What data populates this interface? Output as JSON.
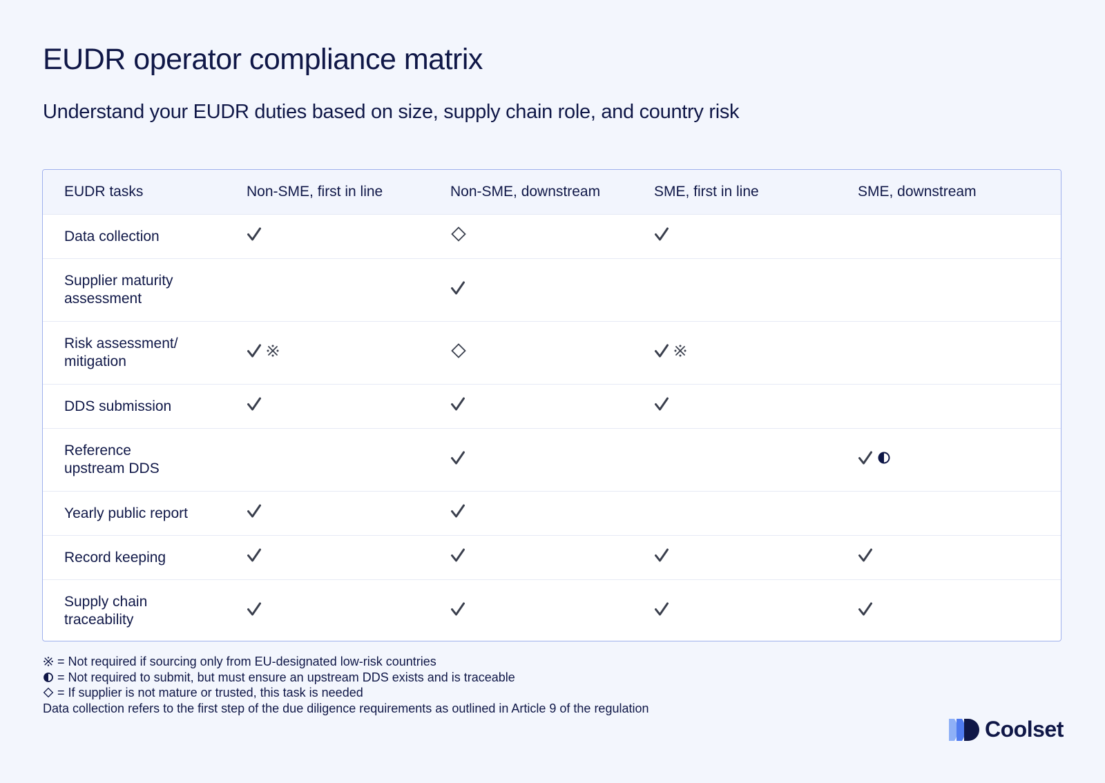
{
  "title": "EUDR operator compliance matrix",
  "subtitle": "Understand your EUDR duties based on size, supply chain role, and country risk",
  "table": {
    "headers": [
      "EUDR tasks",
      "Non-SME, first in line",
      "Non-SME, downstream",
      "SME, first in line",
      "SME, downstream"
    ],
    "rows": [
      {
        "task": "Data collection",
        "cells": [
          [
            "check"
          ],
          [
            "diamond"
          ],
          [
            "check"
          ],
          []
        ]
      },
      {
        "task": "Supplier maturity assessment",
        "cells": [
          [],
          [
            "check"
          ],
          [],
          []
        ]
      },
      {
        "task": "Risk assessment/ mitigation",
        "cells": [
          [
            "check",
            "reference-mark"
          ],
          [
            "diamond"
          ],
          [
            "check",
            "reference-mark"
          ],
          []
        ]
      },
      {
        "task": "DDS submission",
        "cells": [
          [
            "check"
          ],
          [
            "check"
          ],
          [
            "check"
          ],
          []
        ]
      },
      {
        "task": "Reference upstream DDS",
        "cells": [
          [],
          [
            "check"
          ],
          [],
          [
            "check",
            "half-circle"
          ]
        ]
      },
      {
        "task": "Yearly public report",
        "cells": [
          [
            "check"
          ],
          [
            "check"
          ],
          [],
          []
        ]
      },
      {
        "task": "Record keeping",
        "cells": [
          [
            "check"
          ],
          [
            "check"
          ],
          [
            "check"
          ],
          [
            "check"
          ]
        ]
      },
      {
        "task": "Supply chain traceability",
        "cells": [
          [
            "check"
          ],
          [
            "check"
          ],
          [
            "check"
          ],
          [
            "check"
          ]
        ]
      }
    ]
  },
  "footnotes": {
    "reference_mark": "= Not required if sourcing only from EU-designated low-risk countries",
    "half_circle": "= Not required to submit, but must ensure an upstream DDS exists and is traceable",
    "diamond": "= If supplier is not mature or trusted, this task is needed",
    "data_collection": "Data collection refers to the first step of the due diligence requirements as outlined in Article 9 of the regulation"
  },
  "brand": {
    "name": "Coolset",
    "logo_icon": "coolset-logo-icon"
  },
  "colors": {
    "background": "#f3f6fd",
    "text": "#0f1747",
    "table_border": "#9fb0ec",
    "mark": "#3a3f4d",
    "logo_light": "#8eb0f7",
    "logo_mid": "#4f7bf0",
    "logo_dark": "#0f1747"
  }
}
